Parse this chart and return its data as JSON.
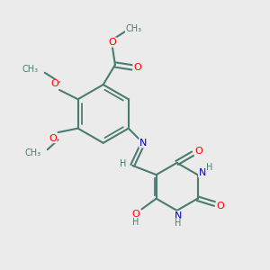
{
  "background_color": "#ebebeb",
  "bond_color": "#4a7c6f",
  "bond_width": 1.5,
  "atom_colors": {
    "O": "#ff0000",
    "N": "#0000cc",
    "C": "#4a7c6f",
    "H": "#4a7c6f"
  },
  "font_size_atom": 8,
  "font_size_H": 7,
  "figsize": [
    3.0,
    3.0
  ],
  "dpi": 100,
  "xlim": [
    0,
    10
  ],
  "ylim": [
    0,
    10
  ]
}
